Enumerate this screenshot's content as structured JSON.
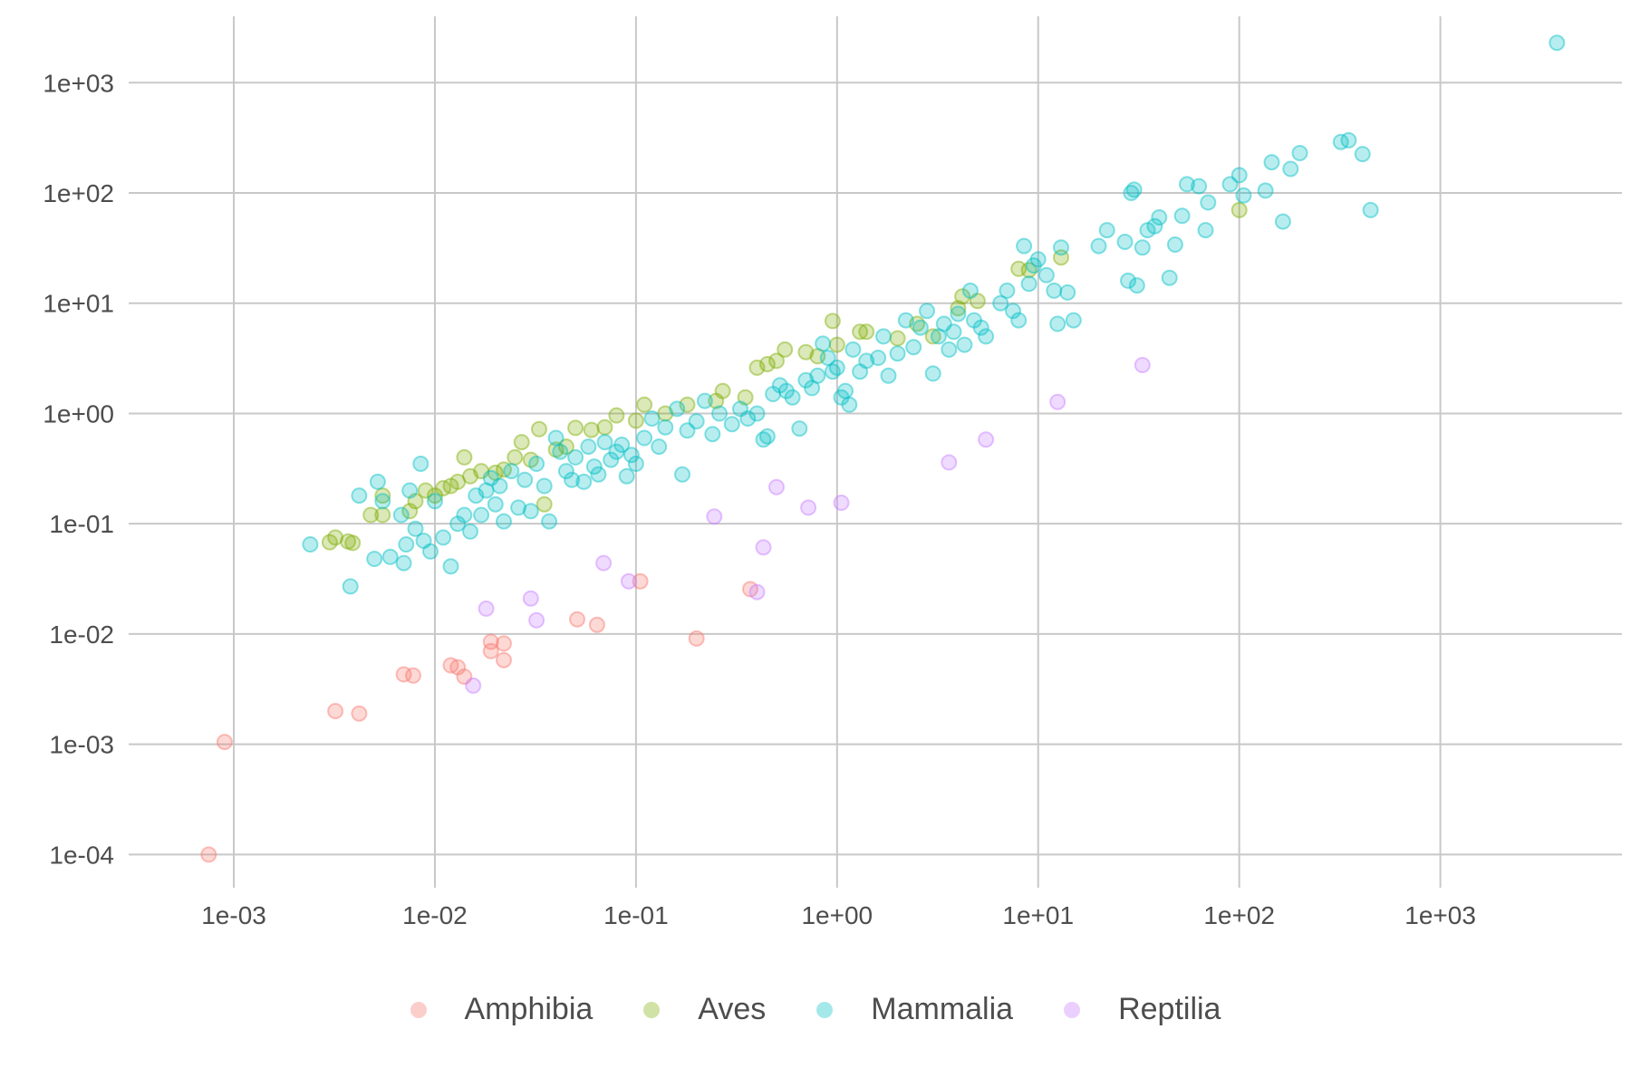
{
  "chart_data": {
    "type": "scatter",
    "title": "",
    "xlabel": "",
    "ylabel": "",
    "x_scale": "log10",
    "y_scale": "log10",
    "xlim": [
      0.0003,
      8000
    ],
    "ylim": [
      5e-05,
      4000
    ],
    "grid": true,
    "legend_position": "bottom",
    "x_ticks": [
      0.001,
      0.01,
      0.1,
      1,
      10,
      100,
      1000
    ],
    "x_tick_labels": [
      "1e-03",
      "1e-02",
      "1e-01",
      "1e+00",
      "1e+01",
      "1e+02",
      "1e+03"
    ],
    "y_ticks": [
      0.0001,
      0.001,
      0.01,
      0.1,
      1,
      10,
      100,
      1000
    ],
    "y_tick_labels": [
      "1e-04",
      "1e-03",
      "1e-02",
      "1e-01",
      "1e+00",
      "1e+01",
      "1e+02",
      "1e+03"
    ],
    "series": [
      {
        "name": "Amphibia",
        "color": "#F8766D",
        "points": [
          [
            0.00075,
            0.0001
          ],
          [
            0.0009,
            0.00105
          ],
          [
            0.0032,
            0.002
          ],
          [
            0.0042,
            0.0019
          ],
          [
            0.007,
            0.0043
          ],
          [
            0.0078,
            0.0042
          ],
          [
            0.012,
            0.0052
          ],
          [
            0.013,
            0.005
          ],
          [
            0.014,
            0.0041
          ],
          [
            0.019,
            0.0085
          ],
          [
            0.019,
            0.007
          ],
          [
            0.022,
            0.0082
          ],
          [
            0.022,
            0.0058
          ],
          [
            0.051,
            0.0136
          ],
          [
            0.064,
            0.0121
          ],
          [
            0.105,
            0.03
          ],
          [
            0.2,
            0.0091
          ],
          [
            0.37,
            0.0255
          ]
        ]
      },
      {
        "name": "Aves",
        "color": "#7CAE00",
        "points": [
          [
            0.003,
            0.068
          ],
          [
            0.0032,
            0.075
          ],
          [
            0.0037,
            0.069
          ],
          [
            0.0039,
            0.067
          ],
          [
            0.0048,
            0.12
          ],
          [
            0.0055,
            0.12
          ],
          [
            0.0055,
            0.18
          ],
          [
            0.0075,
            0.13
          ],
          [
            0.008,
            0.16
          ],
          [
            0.009,
            0.2
          ],
          [
            0.01,
            0.18
          ],
          [
            0.011,
            0.21
          ],
          [
            0.012,
            0.22
          ],
          [
            0.013,
            0.24
          ],
          [
            0.014,
            0.4
          ],
          [
            0.015,
            0.27
          ],
          [
            0.017,
            0.3
          ],
          [
            0.02,
            0.29
          ],
          [
            0.022,
            0.31
          ],
          [
            0.025,
            0.4
          ],
          [
            0.027,
            0.55
          ],
          [
            0.03,
            0.38
          ],
          [
            0.033,
            0.72
          ],
          [
            0.035,
            0.15
          ],
          [
            0.04,
            0.47
          ],
          [
            0.045,
            0.5
          ],
          [
            0.05,
            0.74
          ],
          [
            0.06,
            0.71
          ],
          [
            0.07,
            0.75
          ],
          [
            0.08,
            0.96
          ],
          [
            0.1,
            0.86
          ],
          [
            0.11,
            1.2
          ],
          [
            0.14,
            1.0
          ],
          [
            0.18,
            1.2
          ],
          [
            0.25,
            1.3
          ],
          [
            0.27,
            1.6
          ],
          [
            0.35,
            1.4
          ],
          [
            0.4,
            2.6
          ],
          [
            0.45,
            2.8
          ],
          [
            0.5,
            3.0
          ],
          [
            0.55,
            3.8
          ],
          [
            0.7,
            3.6
          ],
          [
            0.8,
            3.3
          ],
          [
            0.95,
            6.9
          ],
          [
            1.0,
            4.2
          ],
          [
            1.3,
            5.5
          ],
          [
            1.4,
            5.5
          ],
          [
            2.0,
            4.8
          ],
          [
            2.5,
            6.5
          ],
          [
            3.0,
            5.0
          ],
          [
            4.0,
            9.0
          ],
          [
            4.2,
            11.5
          ],
          [
            5.0,
            10.5
          ],
          [
            8.0,
            20.5
          ],
          [
            9.0,
            20.0
          ],
          [
            13.0,
            26.0
          ],
          [
            100.0,
            70.0
          ]
        ]
      },
      {
        "name": "Mammalia",
        "color": "#00BFC4",
        "points": [
          [
            0.0024,
            0.065
          ],
          [
            0.0038,
            0.027
          ],
          [
            0.0042,
            0.18
          ],
          [
            0.005,
            0.048
          ],
          [
            0.0052,
            0.24
          ],
          [
            0.0055,
            0.16
          ],
          [
            0.006,
            0.05
          ],
          [
            0.0068,
            0.12
          ],
          [
            0.007,
            0.044
          ],
          [
            0.0072,
            0.065
          ],
          [
            0.0075,
            0.2
          ],
          [
            0.008,
            0.09
          ],
          [
            0.0085,
            0.35
          ],
          [
            0.0088,
            0.07
          ],
          [
            0.0095,
            0.056
          ],
          [
            0.01,
            0.16
          ],
          [
            0.011,
            0.075
          ],
          [
            0.012,
            0.041
          ],
          [
            0.013,
            0.1
          ],
          [
            0.014,
            0.12
          ],
          [
            0.015,
            0.085
          ],
          [
            0.016,
            0.18
          ],
          [
            0.017,
            0.12
          ],
          [
            0.018,
            0.2
          ],
          [
            0.019,
            0.26
          ],
          [
            0.02,
            0.15
          ],
          [
            0.021,
            0.22
          ],
          [
            0.022,
            0.105
          ],
          [
            0.024,
            0.3
          ],
          [
            0.026,
            0.14
          ],
          [
            0.028,
            0.25
          ],
          [
            0.03,
            0.13
          ],
          [
            0.032,
            0.35
          ],
          [
            0.035,
            0.22
          ],
          [
            0.037,
            0.105
          ],
          [
            0.04,
            0.6
          ],
          [
            0.042,
            0.45
          ],
          [
            0.045,
            0.3
          ],
          [
            0.048,
            0.25
          ],
          [
            0.05,
            0.4
          ],
          [
            0.055,
            0.24
          ],
          [
            0.058,
            0.5
          ],
          [
            0.062,
            0.33
          ],
          [
            0.065,
            0.28
          ],
          [
            0.07,
            0.55
          ],
          [
            0.075,
            0.38
          ],
          [
            0.08,
            0.45
          ],
          [
            0.085,
            0.52
          ],
          [
            0.09,
            0.27
          ],
          [
            0.095,
            0.42
          ],
          [
            0.1,
            0.35
          ],
          [
            0.11,
            0.6
          ],
          [
            0.12,
            0.9
          ],
          [
            0.13,
            0.5
          ],
          [
            0.14,
            0.75
          ],
          [
            0.16,
            1.1
          ],
          [
            0.17,
            0.28
          ],
          [
            0.18,
            0.7
          ],
          [
            0.2,
            0.85
          ],
          [
            0.22,
            1.3
          ],
          [
            0.24,
            0.65
          ],
          [
            0.26,
            1.0
          ],
          [
            0.3,
            0.8
          ],
          [
            0.33,
            1.1
          ],
          [
            0.36,
            0.9
          ],
          [
            0.4,
            1.0
          ],
          [
            0.43,
            0.58
          ],
          [
            0.45,
            0.62
          ],
          [
            0.48,
            1.5
          ],
          [
            0.52,
            1.8
          ],
          [
            0.56,
            1.6
          ],
          [
            0.6,
            1.4
          ],
          [
            0.65,
            0.73
          ],
          [
            0.7,
            2.0
          ],
          [
            0.75,
            1.7
          ],
          [
            0.8,
            2.2
          ],
          [
            0.85,
            4.3
          ],
          [
            0.9,
            3.2
          ],
          [
            0.95,
            2.4
          ],
          [
            1.0,
            2.6
          ],
          [
            1.05,
            1.4
          ],
          [
            1.1,
            1.6
          ],
          [
            1.15,
            1.2
          ],
          [
            1.2,
            3.8
          ],
          [
            1.3,
            2.4
          ],
          [
            1.4,
            3.0
          ],
          [
            1.6,
            3.2
          ],
          [
            1.7,
            5.0
          ],
          [
            1.8,
            2.2
          ],
          [
            2.0,
            3.5
          ],
          [
            2.2,
            7.0
          ],
          [
            2.4,
            4.0
          ],
          [
            2.6,
            6.0
          ],
          [
            2.8,
            8.5
          ],
          [
            3.0,
            2.3
          ],
          [
            3.2,
            5.0
          ],
          [
            3.4,
            6.5
          ],
          [
            3.6,
            3.8
          ],
          [
            3.8,
            5.5
          ],
          [
            4.0,
            8.0
          ],
          [
            4.3,
            4.2
          ],
          [
            4.6,
            13.0
          ],
          [
            4.8,
            7.0
          ],
          [
            5.2,
            6.0
          ],
          [
            5.5,
            5.0
          ],
          [
            6.5,
            10.0
          ],
          [
            7.0,
            13.0
          ],
          [
            7.5,
            8.5
          ],
          [
            8.0,
            7.0
          ],
          [
            8.5,
            33.0
          ],
          [
            9.0,
            15.0
          ],
          [
            9.5,
            22.0
          ],
          [
            10.0,
            25.0
          ],
          [
            11.0,
            18.0
          ],
          [
            12.0,
            13.0
          ],
          [
            12.5,
            6.5
          ],
          [
            13.0,
            32.0
          ],
          [
            14.0,
            12.5
          ],
          [
            15.0,
            7.0
          ],
          [
            20.0,
            33.0
          ],
          [
            22.0,
            46.0
          ],
          [
            27.0,
            36.0
          ],
          [
            28.0,
            16.0
          ],
          [
            29.0,
            100.0
          ],
          [
            30.0,
            107.0
          ],
          [
            31.0,
            14.5
          ],
          [
            33.0,
            32.0
          ],
          [
            35.0,
            46.0
          ],
          [
            38.0,
            50.0
          ],
          [
            40.0,
            60.0
          ],
          [
            45.0,
            17.0
          ],
          [
            48.0,
            34.0
          ],
          [
            52.0,
            62.0
          ],
          [
            55.0,
            120.0
          ],
          [
            63.0,
            115.0
          ],
          [
            68.0,
            46.0
          ],
          [
            70.0,
            82.0
          ],
          [
            90.0,
            120.0
          ],
          [
            100.0,
            145.0
          ],
          [
            105.0,
            95.0
          ],
          [
            135.0,
            105.0
          ],
          [
            145.0,
            190.0
          ],
          [
            165.0,
            55.0
          ],
          [
            180.0,
            165.0
          ],
          [
            200.0,
            230.0
          ],
          [
            320.0,
            290.0
          ],
          [
            350.0,
            300.0
          ],
          [
            410.0,
            225.0
          ],
          [
            450.0,
            70.0
          ],
          [
            3800.0,
            2300.0
          ]
        ]
      },
      {
        "name": "Reptilia",
        "color": "#C77CFF",
        "points": [
          [
            0.0155,
            0.0034
          ],
          [
            0.018,
            0.017
          ],
          [
            0.03,
            0.021
          ],
          [
            0.032,
            0.0133
          ],
          [
            0.069,
            0.044
          ],
          [
            0.092,
            0.03
          ],
          [
            0.245,
            0.116
          ],
          [
            0.4,
            0.024
          ],
          [
            0.43,
            0.061
          ],
          [
            0.5,
            0.215
          ],
          [
            0.72,
            0.14
          ],
          [
            1.05,
            0.155
          ],
          [
            3.6,
            0.36
          ],
          [
            5.5,
            0.58
          ],
          [
            12.5,
            1.27
          ],
          [
            33.0,
            2.75
          ]
        ]
      }
    ]
  }
}
